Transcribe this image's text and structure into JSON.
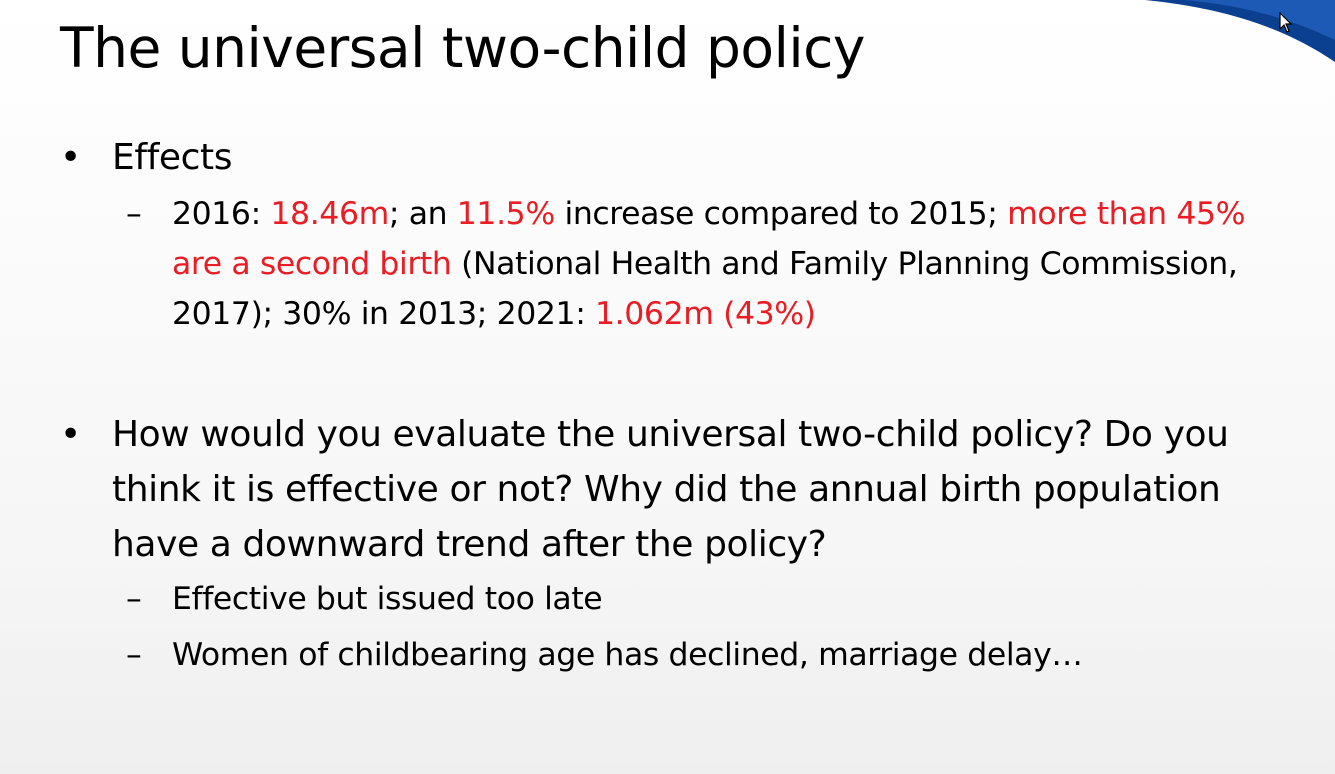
{
  "slide": {
    "title": "The universal two-child policy",
    "bullet_marker": "•",
    "dash_marker": "–",
    "bullets": [
      {
        "text": "Effects",
        "sub": [
          {
            "parts": [
              {
                "text": "2016: ",
                "highlight": false
              },
              {
                "text": "18.46m",
                "highlight": true
              },
              {
                "text": "; an ",
                "highlight": false
              },
              {
                "text": "11.5%",
                "highlight": true
              },
              {
                "text": " increase compared to 2015; ",
                "highlight": false
              },
              {
                "text": "more than 45% are a second birth",
                "highlight": true
              },
              {
                "text": " (National Health and Family Planning Commission, 2017); 30% in 2013;  2021: ",
                "highlight": false
              },
              {
                "text": "1.062m (43%)",
                "highlight": true
              }
            ]
          }
        ]
      },
      {
        "text": "How would you evaluate the universal two-child policy? Do you think it is effective or not? Why did the annual birth population have a downward trend after the policy?",
        "sub": [
          {
            "text": "Effective but issued too late"
          },
          {
            "text": "Women of childbearing age has declined, marriage delay…"
          }
        ]
      }
    ]
  },
  "colors": {
    "highlight": "#ea1c24",
    "text": "#000000",
    "corner_accent": "#0b3f8f"
  },
  "icons": {
    "cursor": "mouse-pointer-icon"
  }
}
